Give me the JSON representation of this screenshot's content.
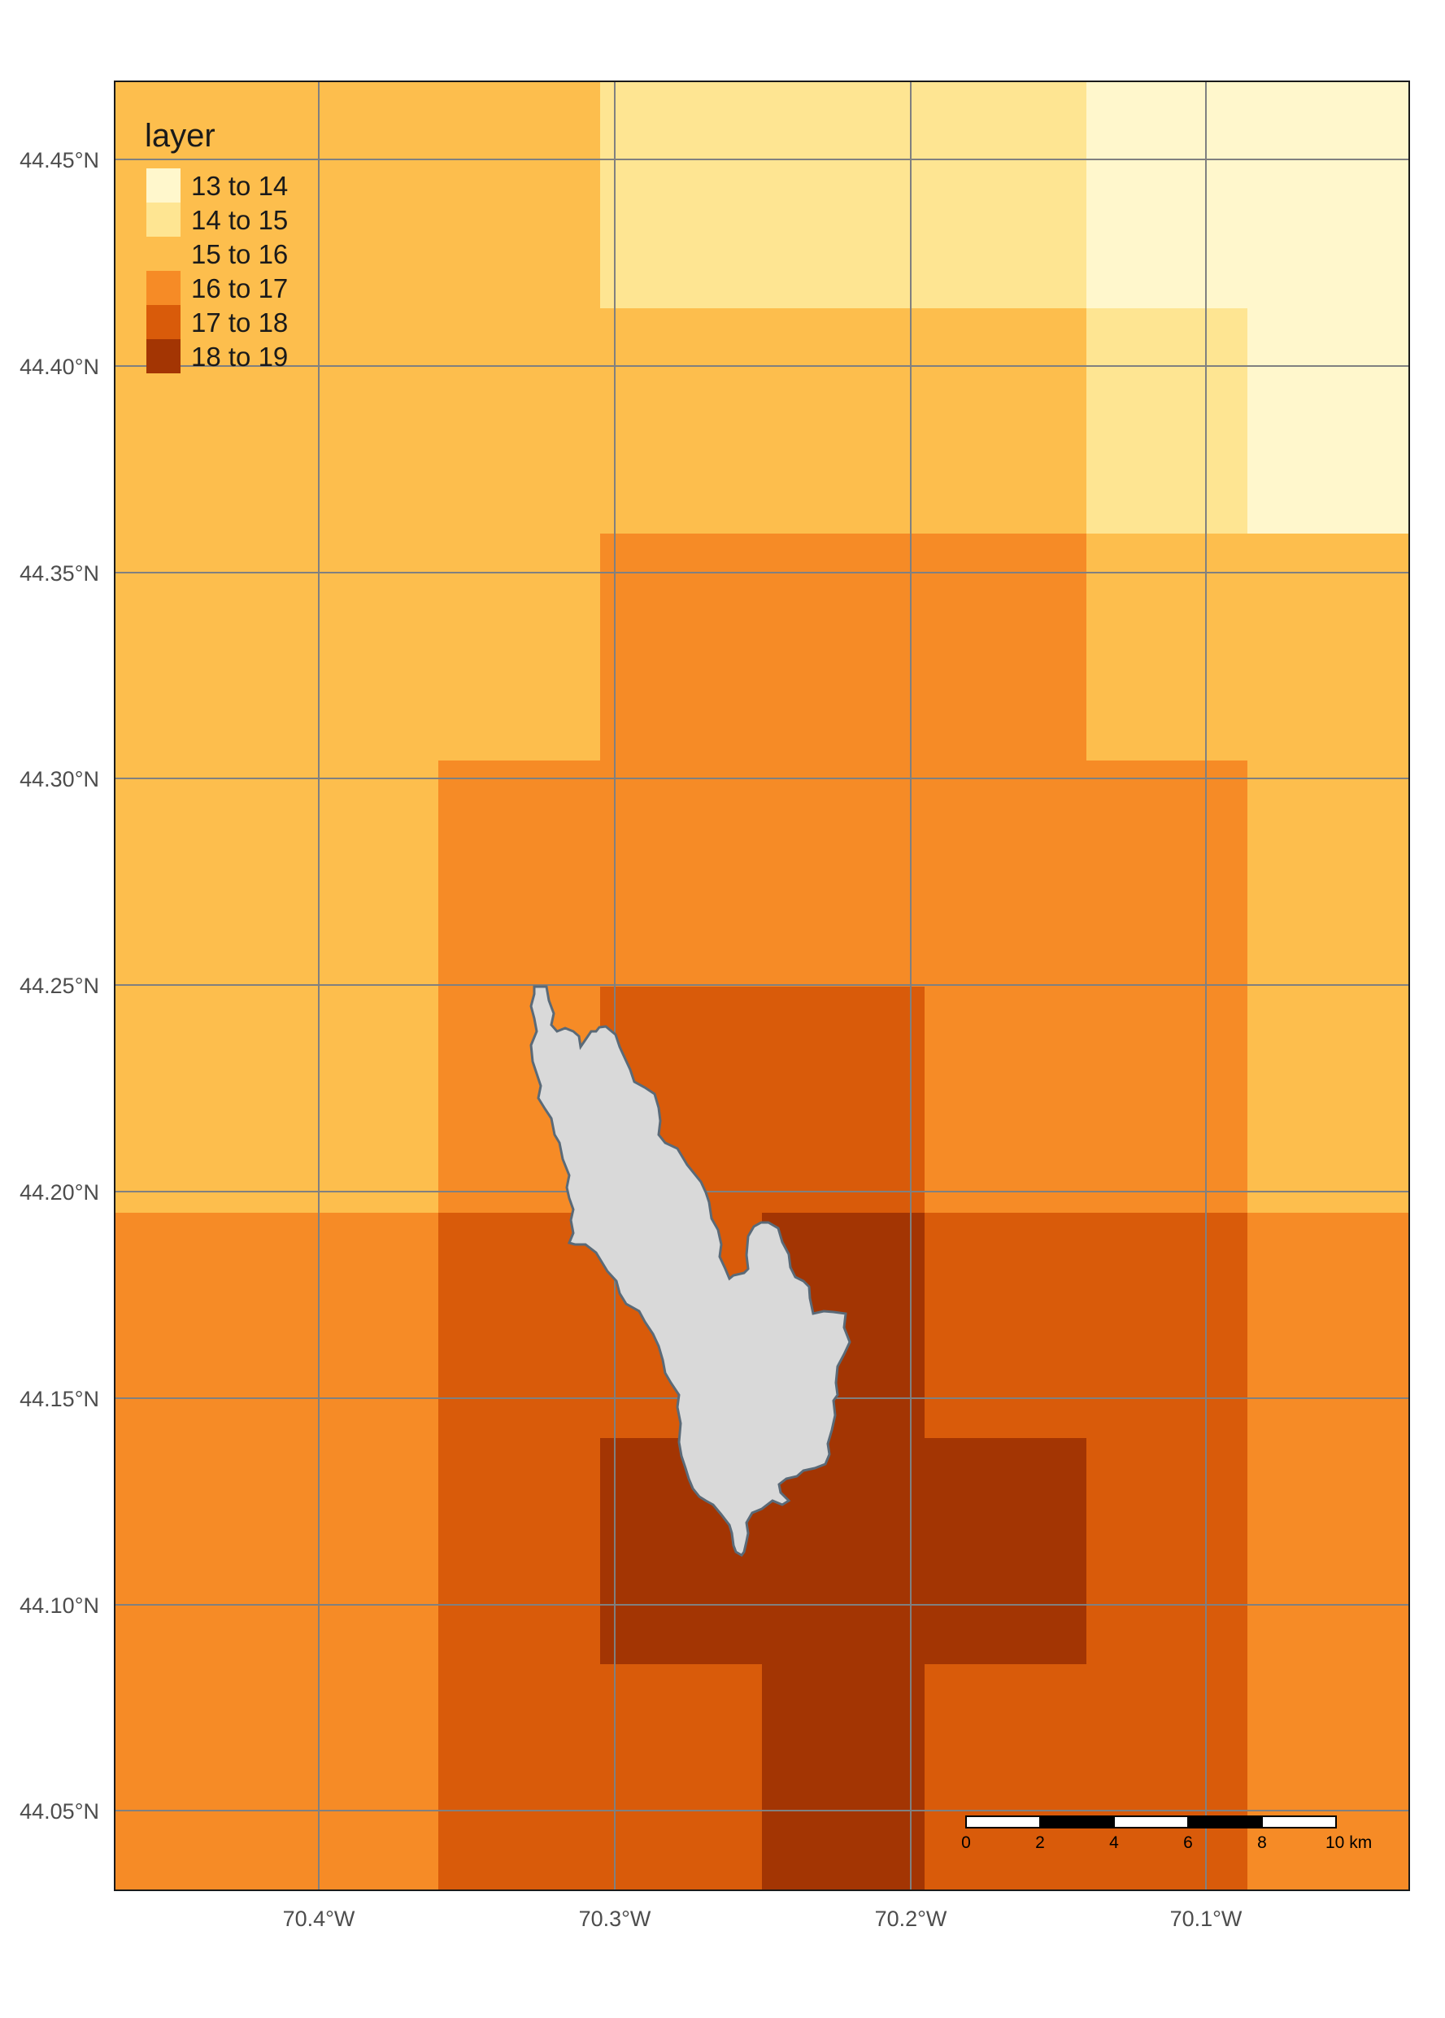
{
  "legend": {
    "title": "layer",
    "items": [
      {
        "label": "13 to 14",
        "color": "#FFF7CC"
      },
      {
        "label": "14 to 15",
        "color": "#FEE592"
      },
      {
        "label": "15 to 16",
        "color": "#FDBE4D"
      },
      {
        "label": "16 to 17",
        "color": "#F68B26"
      },
      {
        "label": "17 to 18",
        "color": "#D95B0A"
      },
      {
        "label": "18 to 19",
        "color": "#A33503"
      }
    ]
  },
  "axes": {
    "x_ticks": [
      "70.4°W",
      "70.3°W",
      "70.2°W",
      "70.1°W"
    ],
    "y_ticks": [
      "44.45°N",
      "44.40°N",
      "44.35°N",
      "44.30°N",
      "44.25°N",
      "44.20°N",
      "44.15°N",
      "44.10°N",
      "44.05°N"
    ]
  },
  "scale_bar": {
    "labels": [
      "0",
      "2",
      "4",
      "6",
      "8",
      "10 km"
    ]
  },
  "colors": {
    "basin_fill": "#D9D9D9",
    "basin_outline": "#5A6A78",
    "graticule": "#808080",
    "frame": "#1a1a1a"
  }
}
